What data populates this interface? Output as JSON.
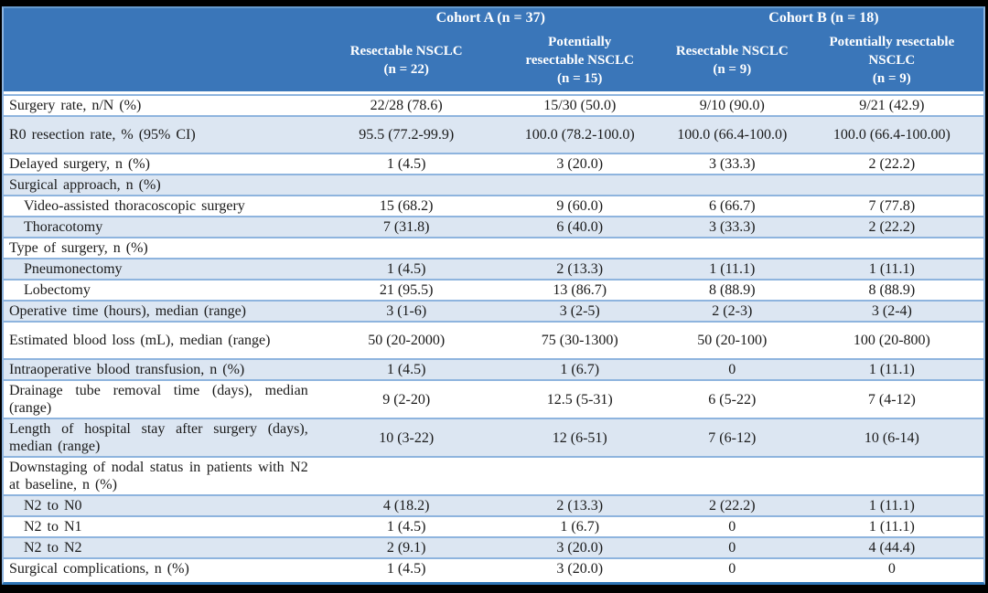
{
  "colors": {
    "header_bg": "#3a76b9",
    "header_text": "#ffffff",
    "row_alt_bg": "#dce6f2",
    "row_border": "#8eb4de",
    "outer_bottom_border": "#2e75b6",
    "outer_light_border": "#6699cc",
    "page_bg": "#000000"
  },
  "header": {
    "groups": [
      {
        "title": "Cohort A (n = 37)"
      },
      {
        "title": "Cohort B (n = 18)"
      }
    ],
    "columns": [
      {
        "lines": [
          "Resectable NSCLC"
        ],
        "n": "(n = 22)"
      },
      {
        "lines": [
          "Potentially",
          "resectable NSCLC"
        ],
        "n": "(n = 15)"
      },
      {
        "lines": [
          "Resectable NSCLC"
        ],
        "n": "(n = 9)"
      },
      {
        "lines": [
          "Potentially resectable",
          "NSCLC"
        ],
        "n": "(n = 9)"
      }
    ]
  },
  "rows": [
    {
      "label": "Surgery rate, n/N (%)",
      "indent": false,
      "tall": false,
      "values": [
        "22/28 (78.6)",
        "15/30 (50.0)",
        "9/10 (90.0)",
        "9/21 (42.9)"
      ]
    },
    {
      "label": "R0 resection rate, % (95% CI)",
      "indent": false,
      "tall": true,
      "values": [
        "95.5 (77.2-99.9)",
        "100.0 (78.2-100.0)",
        "100.0 (66.4-100.0)",
        "100.0 (66.4-100.00)"
      ]
    },
    {
      "label": "Delayed surgery, n (%)",
      "indent": false,
      "tall": false,
      "values": [
        "1 (4.5)",
        "3 (20.0)",
        "3 (33.3)",
        "2 (22.2)"
      ]
    },
    {
      "label": "Surgical approach, n (%)",
      "indent": false,
      "tall": false,
      "values": [
        "",
        "",
        "",
        ""
      ]
    },
    {
      "label": "Video-assisted thoracoscopic surgery",
      "indent": true,
      "tall": false,
      "values": [
        "15 (68.2)",
        "9 (60.0)",
        "6 (66.7)",
        "7 (77.8)"
      ]
    },
    {
      "label": "Thoracotomy",
      "indent": true,
      "tall": false,
      "values": [
        "7 (31.8)",
        "6 (40.0)",
        "3 (33.3)",
        "2 (22.2)"
      ]
    },
    {
      "label": "Type of surgery, n (%)",
      "indent": false,
      "tall": false,
      "values": [
        "",
        "",
        "",
        ""
      ]
    },
    {
      "label": "Pneumonectomy",
      "indent": true,
      "tall": false,
      "values": [
        "1 (4.5)",
        "2 (13.3)",
        "1 (11.1)",
        "1 (11.1)"
      ]
    },
    {
      "label": "Lobectomy",
      "indent": true,
      "tall": false,
      "values": [
        "21 (95.5)",
        "13 (86.7)",
        "8 (88.9)",
        "8 (88.9)"
      ]
    },
    {
      "label": "Operative time (hours), median (range)",
      "indent": false,
      "tall": false,
      "values": [
        "3 (1-6)",
        "3 (2-5)",
        "2 (2-3)",
        "3 (2-4)"
      ]
    },
    {
      "label": "Estimated blood loss (mL), median (range)",
      "indent": false,
      "tall": true,
      "values": [
        "50 (20-2000)",
        "75 (30-1300)",
        "50 (20-100)",
        "100 (20-800)"
      ]
    },
    {
      "label": "Intraoperative blood transfusion, n (%)",
      "indent": false,
      "tall": false,
      "values": [
        "1 (4.5)",
        "1 (6.7)",
        "0",
        "1 (11.1)"
      ]
    },
    {
      "label": "Drainage tube removal time (days), median (range)",
      "indent": false,
      "tall": false,
      "values": [
        "9 (2-20)",
        "12.5 (5-31)",
        "6 (5-22)",
        "7 (4-12)"
      ]
    },
    {
      "label": "Length of hospital stay after surgery (days), median (range)",
      "indent": false,
      "tall": false,
      "values": [
        "10 (3-22)",
        "12 (6-51)",
        "7 (6-12)",
        "10 (6-14)"
      ]
    },
    {
      "label": "Downstaging of nodal status in patients with N2 at baseline, n (%)",
      "indent": false,
      "tall": false,
      "values": [
        "",
        "",
        "",
        ""
      ]
    },
    {
      "label": "N2 to N0",
      "indent": true,
      "tall": false,
      "values": [
        "4 (18.2)",
        "2 (13.3)",
        "2 (22.2)",
        "1 (11.1)"
      ]
    },
    {
      "label": "N2 to N1",
      "indent": true,
      "tall": false,
      "values": [
        "1 (4.5)",
        "1 (6.7)",
        "0",
        "1 (11.1)"
      ]
    },
    {
      "label": "N2 to N2",
      "indent": true,
      "tall": false,
      "values": [
        "2 (9.1)",
        "3 (20.0)",
        "0",
        "4 (44.4)"
      ]
    },
    {
      "label": "Surgical complications, n (%)",
      "indent": false,
      "tall": false,
      "values": [
        "1 (4.5)",
        "3 (20.0)",
        "0",
        "0"
      ]
    }
  ]
}
